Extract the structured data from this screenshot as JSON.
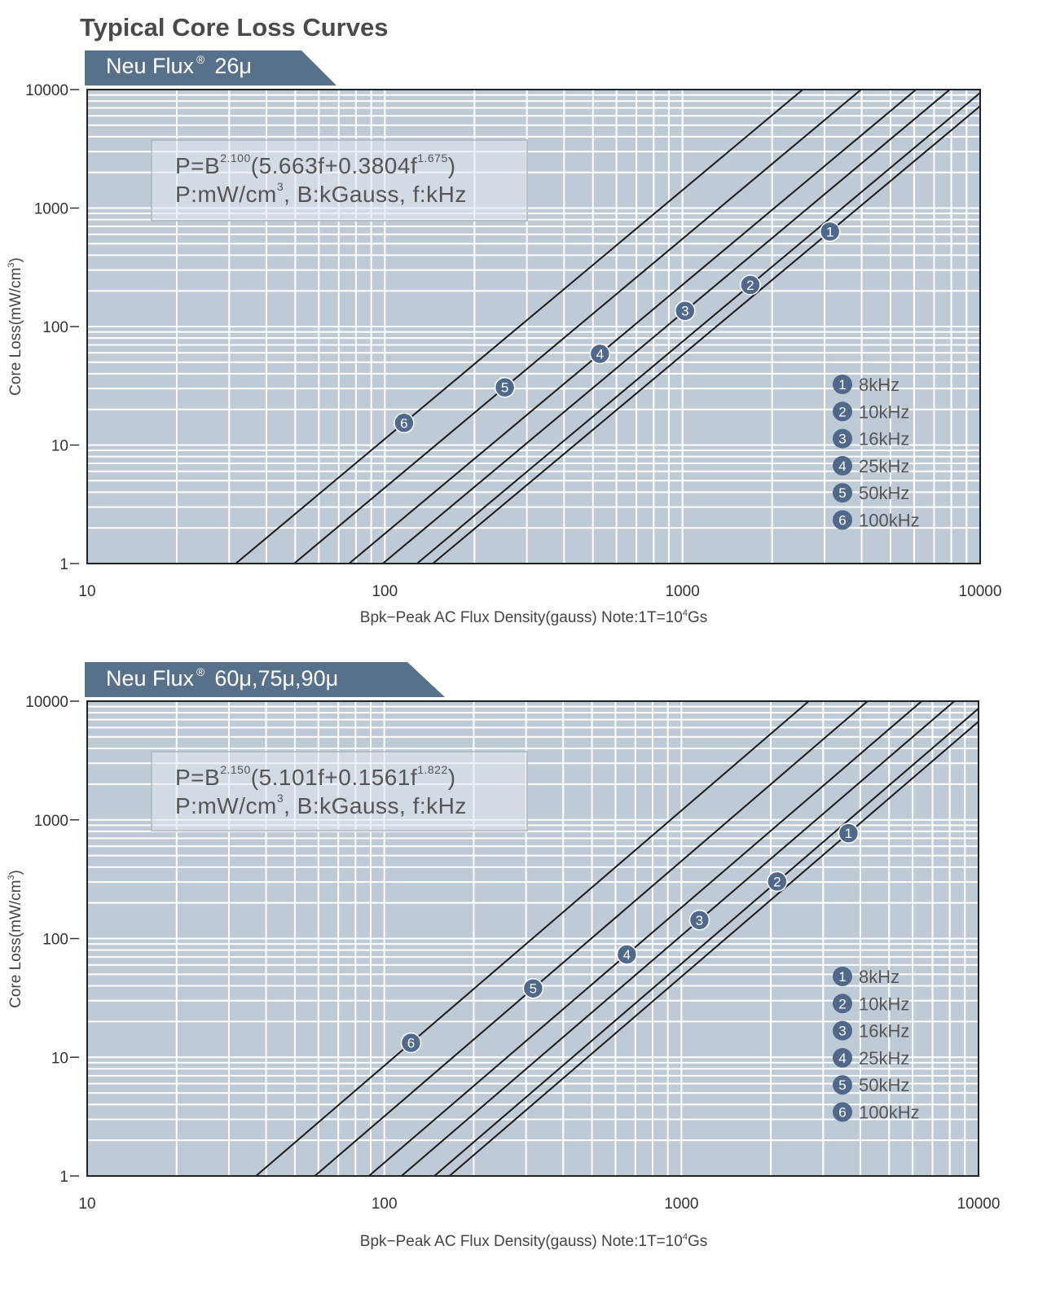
{
  "page_title": "Typical Core Loss Curves",
  "colors": {
    "banner": "#567189",
    "plot_background": "#bfcad7",
    "grid": "#ffffff",
    "curve": "#1a1a1a",
    "marker": "#50698a"
  },
  "chart_data": [
    {
      "type": "line",
      "banner": {
        "brand": "Neu Flux",
        "registered": "®",
        "permeability": "26μ"
      },
      "x_scale": "log",
      "y_scale": "log",
      "xlim": [
        10,
        10000
      ],
      "ylim": [
        1,
        10000
      ],
      "x_ticks": [
        "10",
        "100",
        "1000",
        "10000"
      ],
      "y_ticks": [
        "1",
        "10",
        "100",
        "1000",
        "10000"
      ],
      "xlabel": {
        "text": "Bpk−Peak AC Flux Density(gauss) Note:1T=10",
        "sup": "4",
        "tail": "Gs"
      },
      "ylabel": {
        "text": "Core Loss(mW/cm",
        "sup": "3",
        "tail": ")"
      },
      "grid": true,
      "legend_position": "right",
      "formula": {
        "line1": {
          "a": "P=B",
          "exp_b": "2.100",
          "b": "(5.663f+0.3804f",
          "exp_f": "1.675",
          "c": ")"
        },
        "line2": {
          "a": "P:mW/cm",
          "sup": "3",
          "b": ", B:kGauss, f:kHz"
        },
        "coefficients": {
          "n": 2.1,
          "k1": 5.663,
          "k2": 0.3804,
          "m": 1.675
        }
      },
      "series": [
        {
          "marker": "1",
          "name": "8kHz",
          "frequency_khz": 8,
          "loss_at_1000_gauss": 57.7,
          "marker_at_gauss": 3130
        },
        {
          "marker": "2",
          "name": "10kHz",
          "frequency_khz": 10,
          "loss_at_1000_gauss": 74.6,
          "marker_at_gauss": 1690
        },
        {
          "marker": "3",
          "name": "16kHz",
          "frequency_khz": 16,
          "loss_at_1000_gauss": 130.2,
          "marker_at_gauss": 1020
        },
        {
          "marker": "4",
          "name": "25kHz",
          "frequency_khz": 25,
          "loss_at_1000_gauss": 225.1,
          "marker_at_gauss": 528
        },
        {
          "marker": "5",
          "name": "50kHz",
          "frequency_khz": 50,
          "loss_at_1000_gauss": 549.8,
          "marker_at_gauss": 253
        },
        {
          "marker": "6",
          "name": "100kHz",
          "frequency_khz": 100,
          "loss_at_1000_gauss": 1418,
          "marker_at_gauss": 116
        }
      ]
    },
    {
      "type": "line",
      "banner": {
        "brand": "Neu Flux",
        "registered": "®",
        "permeability": "60μ,75μ,90μ"
      },
      "x_scale": "log",
      "y_scale": "log",
      "xlim": [
        10,
        10000
      ],
      "ylim": [
        1,
        10000
      ],
      "x_ticks": [
        "10",
        "100",
        "1000",
        "10000"
      ],
      "y_ticks": [
        "1",
        "10",
        "100",
        "1000",
        "10000"
      ],
      "xlabel": {
        "text": "Bpk−Peak AC Flux Density(gauss) Note:1T=10",
        "sup": "4",
        "tail": "Gs"
      },
      "ylabel": {
        "text": "Core Loss(mW/cm",
        "sup": "3",
        "tail": ")"
      },
      "grid": true,
      "legend_position": "right",
      "formula": {
        "line1": {
          "a": "P=B",
          "exp_b": "2.150",
          "b": "(5.101f+0.1561f",
          "exp_f": "1.822",
          "c": ")"
        },
        "line2": {
          "a": "P:mW/cm",
          "sup": "3",
          "b": ", B:kGauss, f:kHz"
        },
        "coefficients": {
          "n": 2.15,
          "k1": 5.101,
          "k2": 0.1561,
          "m": 1.822
        }
      },
      "series": [
        {
          "marker": "1",
          "name": "8kHz",
          "frequency_khz": 8,
          "loss_at_1000_gauss": 47.7,
          "marker_at_gauss": 3650
        },
        {
          "marker": "2",
          "name": "10kHz",
          "frequency_khz": 10,
          "loss_at_1000_gauss": 61.4,
          "marker_at_gauss": 2100
        },
        {
          "marker": "3",
          "name": "16kHz",
          "frequency_khz": 16,
          "loss_at_1000_gauss": 106.0,
          "marker_at_gauss": 1150
        },
        {
          "marker": "4",
          "name": "25kHz",
          "frequency_khz": 25,
          "loss_at_1000_gauss": 182.5,
          "marker_at_gauss": 655
        },
        {
          "marker": "5",
          "name": "50kHz",
          "frequency_khz": 50,
          "loss_at_1000_gauss": 449.6,
          "marker_at_gauss": 317
        },
        {
          "marker": "6",
          "name": "100kHz",
          "frequency_khz": 100,
          "loss_at_1000_gauss": 1197.9,
          "marker_at_gauss": 123
        }
      ]
    }
  ]
}
